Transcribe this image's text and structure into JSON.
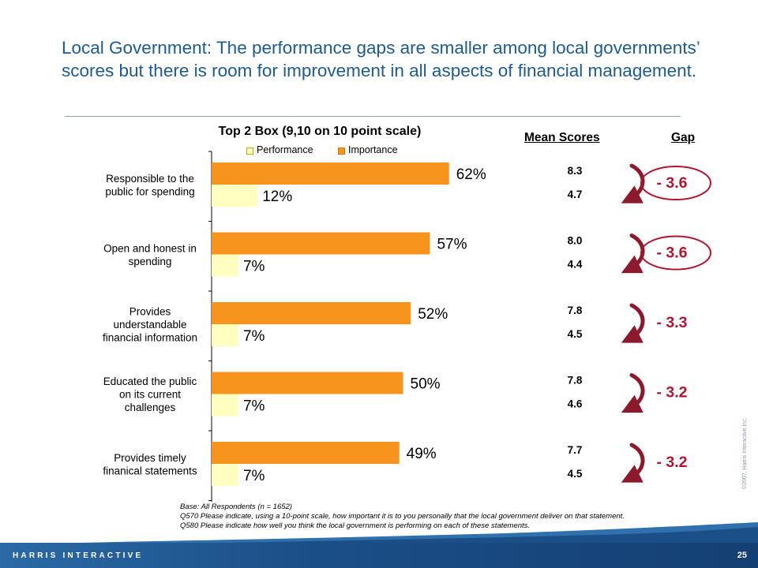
{
  "headline": "Local Government: The performance gaps are smaller among local governments’ scores but there is room for improvement in all aspects of financial management.",
  "colors": {
    "performance": "#ffffc0",
    "importance": "#f7941d",
    "headline": "#1f5b8f",
    "gap": "#b01530",
    "footer": "#1b4f88"
  },
  "chart_data": {
    "type": "bar",
    "orientation": "horizontal",
    "title": "Top 2 Box (9,10 on 10 point scale)",
    "xlim": [
      0,
      100
    ],
    "grid": false,
    "legend": "top",
    "categories": [
      "Responsible to the public for spending",
      "Open and honest in spending",
      "Provides understandable financial information",
      "Educated the public on its current challenges",
      "Provides timely finanical statements"
    ],
    "category_lines": [
      [
        "Responsible to the",
        "public for spending"
      ],
      [
        "Open and honest in",
        "spending"
      ],
      [
        "Provides",
        "understandable",
        "financial information"
      ],
      [
        "Educated the public",
        "on its current",
        "challenges"
      ],
      [
        "Provides timely",
        "finanical statements"
      ]
    ],
    "series": [
      {
        "name": "Importance",
        "values": [
          62,
          57,
          52,
          50,
          49
        ],
        "labels": [
          "62%",
          "57%",
          "52%",
          "50%",
          "49%"
        ]
      },
      {
        "name": "Performance",
        "values": [
          12,
          7,
          7,
          7,
          7
        ],
        "labels": [
          "12%",
          "7%",
          "7%",
          "7%",
          "7%"
        ]
      }
    ],
    "mean_scores_header": "Mean Scores",
    "mean_scores": [
      {
        "importance": "8.3",
        "performance": "4.7"
      },
      {
        "importance": "8.0",
        "performance": "4.4"
      },
      {
        "importance": "7.8",
        "performance": "4.5"
      },
      {
        "importance": "7.8",
        "performance": "4.6"
      },
      {
        "importance": "7.7",
        "performance": "4.5"
      }
    ],
    "gap_header": "Gap",
    "gaps": [
      {
        "label": "- 3.6",
        "circled": true
      },
      {
        "label": "- 3.6",
        "circled": true
      },
      {
        "label": "- 3.3",
        "circled": false
      },
      {
        "label": "- 3.2",
        "circled": false
      },
      {
        "label": "- 3.2",
        "circled": false
      }
    ]
  },
  "notes": [
    "Base: All Respondents (n = 1652)",
    "Q570 Please indicate, using a 10-point scale, how important it is to you personally that the local government deliver on that statement.",
    "Q580 Please indicate how well you think the local government is performing on each of these statements."
  ],
  "copyright": "©2007, Harris Interactive Inc.",
  "footer": {
    "brand": "HARRIS INTERACTIVE",
    "page": "25"
  }
}
